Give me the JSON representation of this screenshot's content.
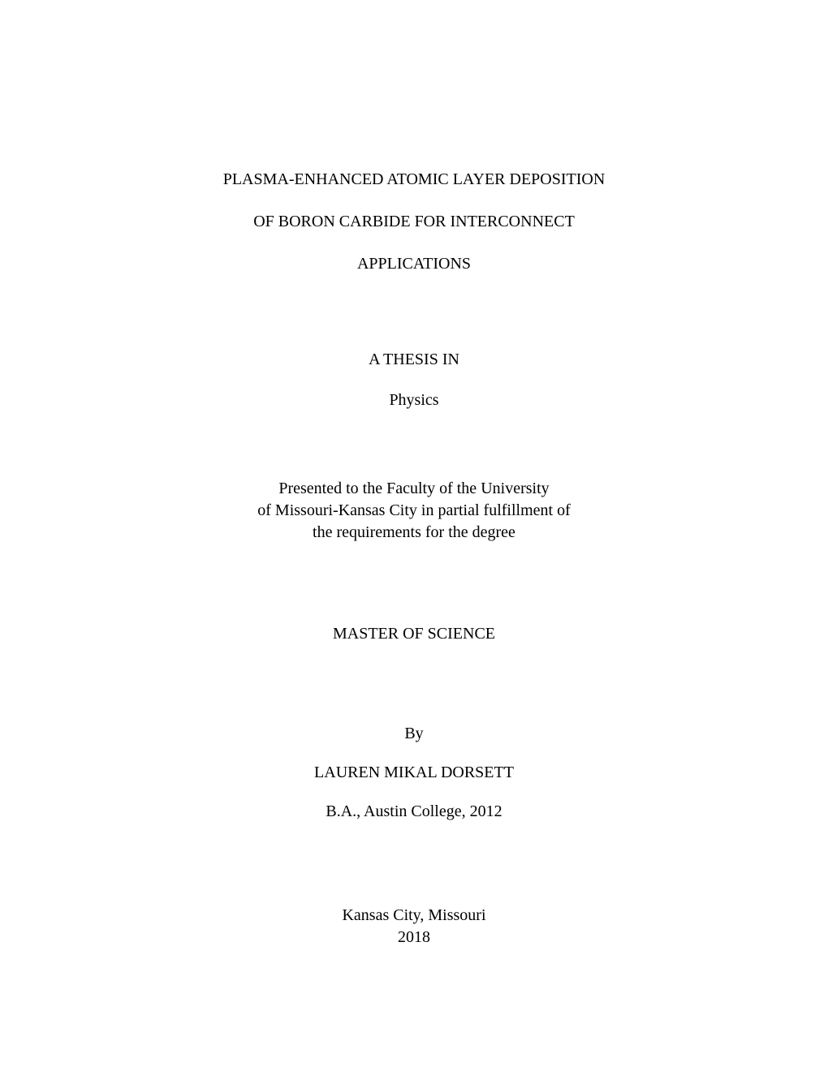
{
  "title": {
    "line1": "PLASMA-ENHANCED ATOMIC LAYER DEPOSITION",
    "line2": "OF BORON CARBIDE FOR INTERCONNECT",
    "line3": "APPLICATIONS"
  },
  "thesis": {
    "heading": "A THESIS IN",
    "subject": "Physics"
  },
  "presented": {
    "line1": "Presented to the Faculty of the University",
    "line2": "of Missouri-Kansas City in partial fulfillment of",
    "line3": "the requirements for the degree"
  },
  "degree": "MASTER OF SCIENCE",
  "author": {
    "by": "By",
    "name": "LAUREN MIKAL DORSETT",
    "prior_degree": "B.A., Austin College, 2012"
  },
  "location": {
    "city": "Kansas City, Missouri",
    "year": "2018"
  }
}
